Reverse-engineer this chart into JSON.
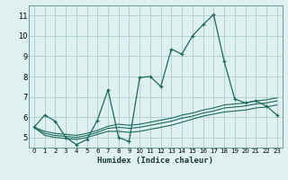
{
  "xlabel": "Humidex (Indice chaleur)",
  "x": [
    0,
    1,
    2,
    3,
    4,
    5,
    6,
    7,
    8,
    9,
    10,
    11,
    12,
    13,
    14,
    15,
    16,
    17,
    18,
    19,
    20,
    21,
    22,
    23
  ],
  "line1": [
    5.5,
    6.1,
    5.8,
    5.0,
    4.65,
    4.9,
    5.85,
    7.35,
    5.0,
    4.8,
    7.95,
    8.0,
    7.5,
    9.35,
    9.1,
    10.0,
    10.55,
    11.05,
    8.75,
    6.9,
    6.7,
    6.8,
    6.55,
    6.1
  ],
  "line2": [
    5.5,
    5.1,
    5.0,
    4.95,
    4.9,
    5.0,
    5.15,
    5.3,
    5.3,
    5.25,
    5.3,
    5.4,
    5.5,
    5.6,
    5.75,
    5.9,
    6.05,
    6.15,
    6.25,
    6.3,
    6.35,
    6.45,
    6.5,
    6.6
  ],
  "line3": [
    5.5,
    5.2,
    5.1,
    5.05,
    5.0,
    5.1,
    5.25,
    5.45,
    5.5,
    5.45,
    5.5,
    5.6,
    5.7,
    5.8,
    5.95,
    6.05,
    6.2,
    6.3,
    6.45,
    6.5,
    6.55,
    6.65,
    6.7,
    6.8
  ],
  "line4": [
    5.5,
    5.3,
    5.2,
    5.15,
    5.1,
    5.2,
    5.35,
    5.55,
    5.65,
    5.6,
    5.65,
    5.75,
    5.85,
    5.95,
    6.1,
    6.2,
    6.35,
    6.45,
    6.6,
    6.65,
    6.7,
    6.8,
    6.85,
    6.95
  ],
  "bg_color": "#dff0f0",
  "line_color": "#1a6b5a",
  "grid_color": "#aacece",
  "ylim": [
    4.5,
    11.5
  ],
  "xlim": [
    -0.5,
    23.5
  ],
  "yticks": [
    5,
    6,
    7,
    8,
    9,
    10,
    11
  ],
  "xticks": [
    0,
    1,
    2,
    3,
    4,
    5,
    6,
    7,
    8,
    9,
    10,
    11,
    12,
    13,
    14,
    15,
    16,
    17,
    18,
    19,
    20,
    21,
    22,
    23
  ]
}
